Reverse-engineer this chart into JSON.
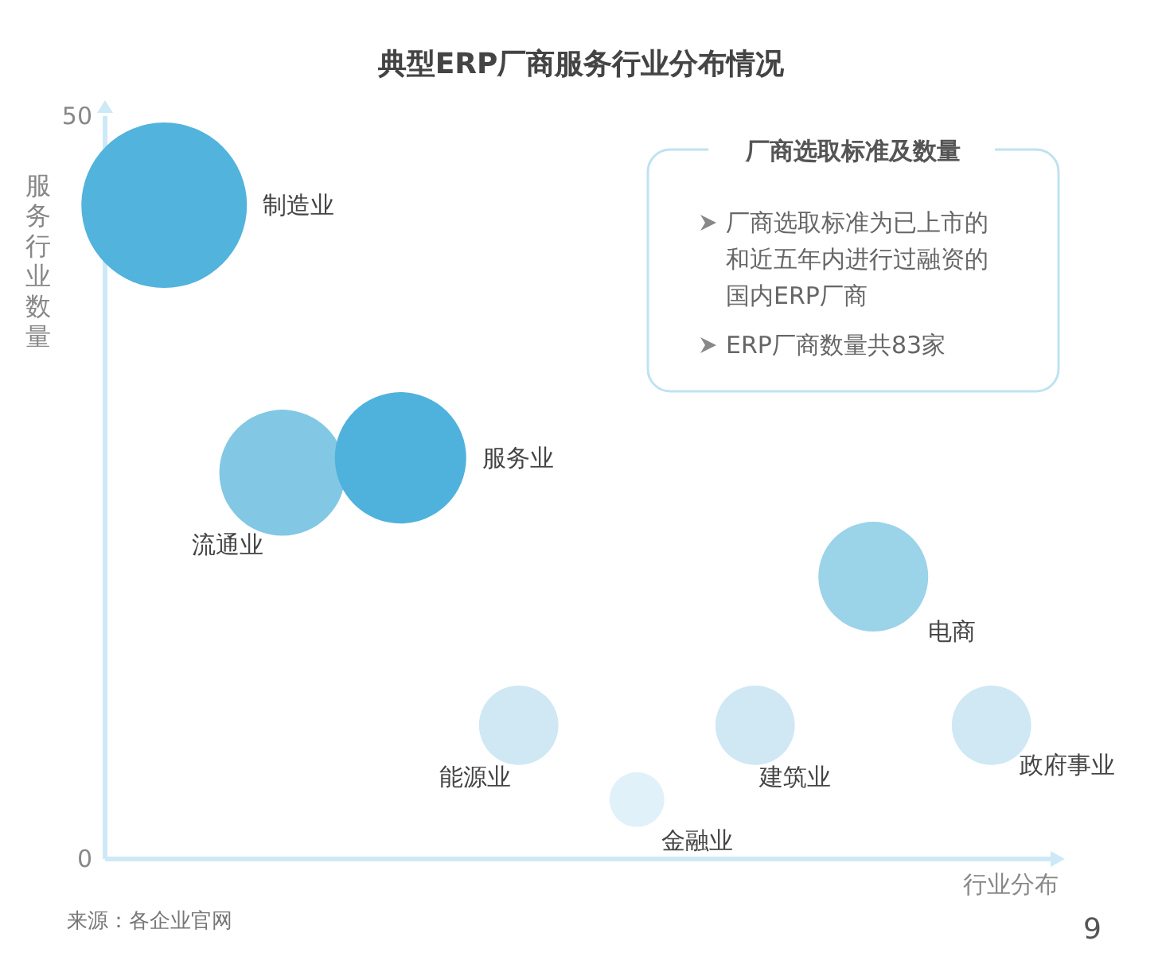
{
  "chart_data": {
    "type": "bubble",
    "title": "典型ERP厂商服务行业分布情况",
    "xlabel": "行业分布",
    "ylabel": "服务行业数量",
    "categories": [
      null,
      null,
      null,
      null,
      null,
      null,
      null,
      null
    ],
    "ylim": [
      0,
      50
    ],
    "yticks": [
      0,
      50
    ],
    "grid": false,
    "legend": false,
    "marker": "circle",
    "series": [
      {
        "name": "制造业",
        "color": "#52b3dc",
        "values": [
          44,
          null,
          null,
          null,
          null,
          null,
          null,
          null
        ],
        "sizes": [
          1,
          null,
          null,
          null,
          null,
          null,
          null,
          null
        ]
      },
      {
        "name": "流通业",
        "color": "#82c7e4",
        "values": [
          null,
          26,
          null,
          null,
          null,
          null,
          null,
          null
        ],
        "sizes": [
          null,
          0.58,
          null,
          null,
          null,
          null,
          null,
          null
        ]
      },
      {
        "name": "服务业",
        "color": "#4fb2dd",
        "values": [
          null,
          null,
          27,
          null,
          null,
          null,
          null,
          null
        ],
        "sizes": [
          null,
          null,
          0.63,
          null,
          null,
          null,
          null,
          null
        ]
      },
      {
        "name": "能源业",
        "color": "#cfe8f4",
        "values": [
          null,
          null,
          null,
          9,
          null,
          null,
          null,
          null
        ],
        "sizes": [
          null,
          null,
          null,
          0.23,
          null,
          null,
          null,
          null
        ]
      },
      {
        "name": "金融业",
        "color": "#e1f1f9",
        "values": [
          null,
          null,
          null,
          null,
          4,
          null,
          null,
          null
        ],
        "sizes": [
          null,
          null,
          null,
          null,
          0.11,
          null,
          null,
          null
        ]
      },
      {
        "name": "建筑业",
        "color": "#cfe8f4",
        "values": [
          null,
          null,
          null,
          null,
          null,
          9,
          null,
          null
        ],
        "sizes": [
          null,
          null,
          null,
          null,
          null,
          0.23,
          null,
          null
        ]
      },
      {
        "name": "电商",
        "color": "#9bd3e9",
        "values": [
          null,
          null,
          null,
          null,
          null,
          null,
          19,
          null
        ],
        "sizes": [
          null,
          null,
          null,
          null,
          null,
          null,
          0.44,
          null
        ]
      },
      {
        "name": "政府事业",
        "color": "#cfe8f4",
        "values": [
          null,
          null,
          null,
          null,
          null,
          null,
          null,
          9
        ],
        "sizes": [
          null,
          null,
          null,
          null,
          null,
          null,
          null,
          0.23
        ]
      }
    ],
    "annotations": [
      "厂商选取标准及数量",
      "厂商选取标准为已上市的和近五年内进行过融资的国内ERP厂商",
      "ERP厂商数量共83家",
      "来源：各企业官网",
      "9"
    ]
  }
}
